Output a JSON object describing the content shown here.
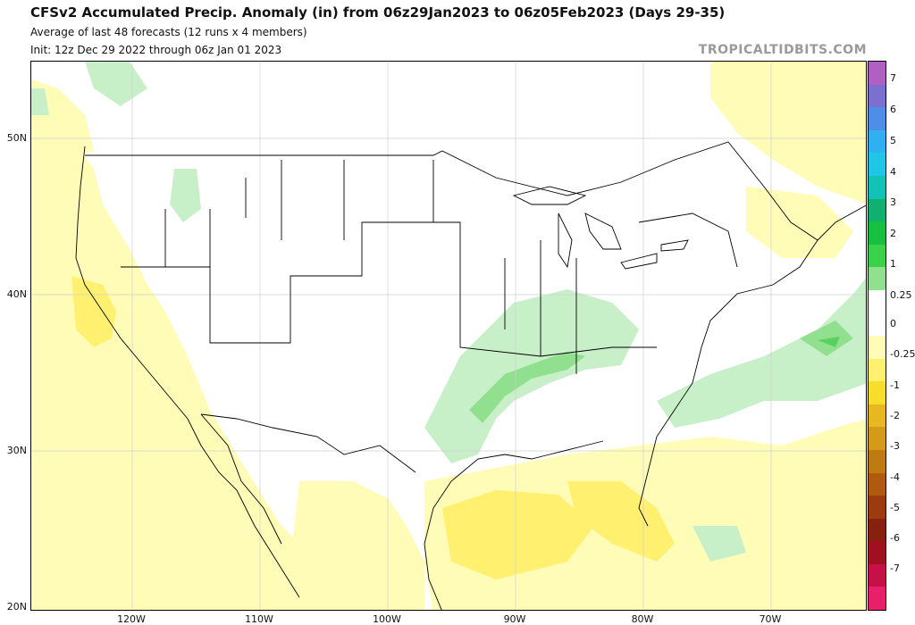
{
  "header": {
    "title": "CFSv2 Accumulated Precip. Anomaly (in) from 06z29Jan2023 to 06z05Feb2023 (Days 29-35)",
    "subtitle": "Average of last 48 forecasts (12 runs x 4 members)",
    "init": "Init: 12z Dec 29 2022 through 06z Jan 01 2023",
    "brand": "TROPICALTIDBITS.COM"
  },
  "axes": {
    "lat_labels": [
      "50N",
      "40N",
      "30N",
      "20N"
    ],
    "lon_labels": [
      "120W",
      "110W",
      "100W",
      "90W",
      "80W",
      "70W"
    ]
  },
  "colorbar": {
    "labels": [
      "7",
      "6",
      "5",
      "4",
      "3",
      "2",
      "1",
      "0.25",
      "0",
      "-0.25",
      "-1",
      "-2",
      "-3",
      "-4",
      "-5",
      "-6",
      "-7"
    ],
    "colors": [
      "#b060c0",
      "#7b6fd0",
      "#4f8ee8",
      "#2fb0f0",
      "#1fc6e6",
      "#10c2b8",
      "#0fb070",
      "#18c040",
      "#3ad24a",
      "#90e090",
      "#ffffff",
      "#ffffff",
      "#fffcb8",
      "#fff070",
      "#f7dd2c",
      "#e8b820",
      "#d49a18",
      "#c07a12",
      "#b05a10",
      "#9c3a10",
      "#882010",
      "#a01020",
      "#c81048",
      "#e8206a"
    ]
  }
}
